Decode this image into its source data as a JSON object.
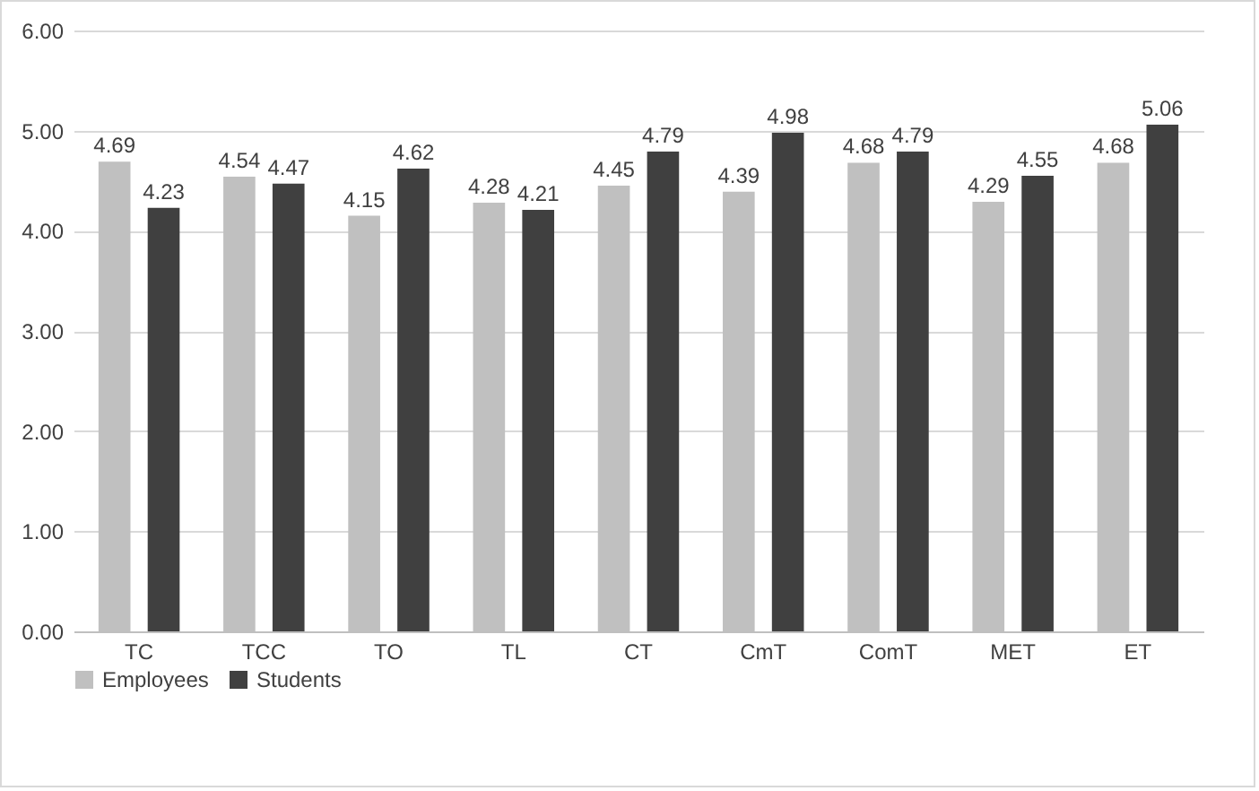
{
  "chart_data": {
    "type": "bar",
    "categories": [
      "TC",
      "TCC",
      "TO",
      "TL",
      "CT",
      "CmT",
      "ComT",
      "MET",
      "ET"
    ],
    "series": [
      {
        "name": "Employees",
        "color": "#c0c0c0",
        "values": [
          4.69,
          4.54,
          4.15,
          4.28,
          4.45,
          4.39,
          4.68,
          4.29,
          4.68
        ]
      },
      {
        "name": "Students",
        "color": "#404040",
        "values": [
          4.23,
          4.47,
          4.62,
          4.21,
          4.79,
          4.98,
          4.79,
          4.55,
          5.06
        ]
      }
    ],
    "ylim": [
      0,
      6
    ],
    "yticks": [
      {
        "value": 0,
        "label": "0.00"
      },
      {
        "value": 1,
        "label": "1.00"
      },
      {
        "value": 2,
        "label": "2.00"
      },
      {
        "value": 3,
        "label": "3.00"
      },
      {
        "value": 4,
        "label": "4.00"
      },
      {
        "value": 5,
        "label": "5.00"
      },
      {
        "value": 6,
        "label": "6.00"
      }
    ],
    "grid": "y",
    "legend": "bottom",
    "data_labels": true
  }
}
